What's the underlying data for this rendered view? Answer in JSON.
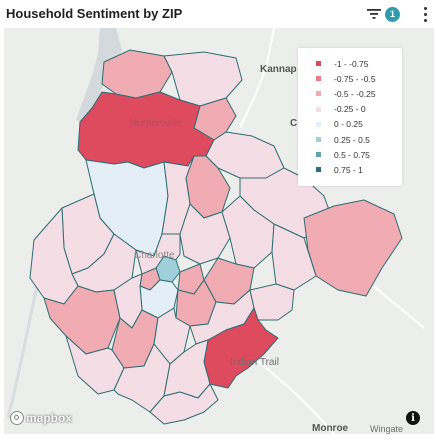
{
  "header": {
    "title": "Household Sentiment by ZIP",
    "filter_icon": "filter-icon",
    "active_filter_count": "1",
    "more_icon": "more-vertical-icon"
  },
  "map": {
    "place_labels": {
      "kannapolis": "Kannap",
      "concord": "C",
      "huntersville": "Huntersville",
      "charlotte": "Charlotte",
      "indian_trail": "Indian Trail",
      "monroe": "Monroe",
      "wingate": "Wingate"
    },
    "attribution_logo": "mapbox",
    "info_label": "i",
    "info_icon": "info-icon"
  },
  "legend": {
    "items": [
      {
        "label": "-1 - -0.75",
        "color": "#de4a5e"
      },
      {
        "label": "-0.75 - -0.5",
        "color": "#e97a86"
      },
      {
        "label": "-0.5 - -0.25",
        "color": "#f1abb3"
      },
      {
        "label": "-0.25 - 0",
        "color": "#f5dde6"
      },
      {
        "label": "0 - 0.25",
        "color": "#e3eef6"
      },
      {
        "label": "0.25 - 0.5",
        "color": "#9fd0da"
      },
      {
        "label": "0.5 - 0.75",
        "color": "#5ea3b1"
      },
      {
        "label": "0.75 - 1",
        "color": "#2c6e7e"
      }
    ]
  },
  "colors": {
    "strong_negative": "#de4a5e",
    "negative": "#e97a86",
    "mild_negative": "#f1abb3",
    "slight_negative": "#f5dde6",
    "slight_positive": "#e3eef6",
    "positive": "#9fd0da",
    "border": "#2b6d72",
    "accent_badge": "#2f9bb1"
  }
}
